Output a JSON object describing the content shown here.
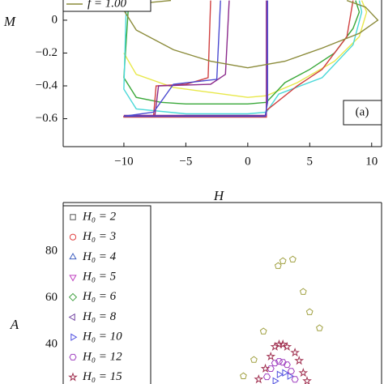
{
  "chart_data": [
    {
      "type": "line",
      "xlabel": "H",
      "ylabel": "M",
      "annotation": "(a)",
      "xlim": [
        -14.9,
        10.8
      ],
      "ylim": [
        -0.77,
        0.123
      ],
      "xticks": [
        {
          "value": -10,
          "label": "−10"
        },
        {
          "value": -5,
          "label": "−5"
        },
        0,
        5,
        10
      ],
      "yticks": [
        0,
        {
          "value": -0.2,
          "label": "−0.2"
        },
        {
          "value": -0.4,
          "label": "−0.4"
        },
        {
          "value": -0.6,
          "label": "−0.6"
        }
      ],
      "series": [
        {
          "color": "#e8e84a",
          "x": [
            -10,
            -9,
            -6,
            -3,
            0,
            1.5,
            4,
            7,
            9,
            9.6,
            9.2
          ],
          "values": [
            -0.2,
            -0.33,
            -0.41,
            -0.44,
            -0.47,
            -0.46,
            -0.38,
            -0.25,
            -0.1,
            0.05,
            0.12
          ]
        },
        {
          "color": "#3aa83a",
          "x": [
            -9.6,
            -10,
            -9,
            -7,
            -5,
            -2.5,
            0,
            1.5,
            3,
            5,
            7,
            8.5,
            9,
            8.7
          ],
          "values": [
            0.12,
            -0.35,
            -0.47,
            -0.5,
            -0.51,
            -0.51,
            -0.51,
            -0.5,
            -0.38,
            -0.3,
            -0.2,
            -0.05,
            0.05,
            0.12
          ]
        },
        {
          "color": "#4ad8d8",
          "x": [
            -9.8,
            -10,
            -9,
            -5,
            0,
            1.5,
            2.5,
            6,
            8.5,
            9.2,
            9
          ],
          "values": [
            0.12,
            -0.42,
            -0.54,
            -0.57,
            -0.57,
            -0.56,
            -0.45,
            -0.35,
            -0.15,
            0.05,
            0.12
          ]
        },
        {
          "color": "#d04040",
          "x": [
            -3,
            -3.2,
            -5,
            -7.4,
            -7.6,
            -10,
            -10,
            1.5,
            1.5,
            4,
            6,
            8,
            8.5
          ],
          "values": [
            0.12,
            -0.35,
            -0.39,
            -0.4,
            -0.58,
            -0.585,
            -0.59,
            -0.59,
            -0.55,
            -0.4,
            -0.3,
            -0.1,
            0.12
          ]
        },
        {
          "color": "#8b2a8b",
          "x": [
            -1.5,
            -1.8,
            -3,
            -7.2,
            -7.5,
            -10,
            1.5,
            1.5
          ],
          "values": [
            0.12,
            -0.33,
            -0.39,
            -0.4,
            -0.58,
            -0.58,
            -0.58,
            0.12
          ]
        },
        {
          "color": "#4a4ad0",
          "x": [
            -2.2,
            -2.5,
            -6,
            -7.6,
            -10,
            1.4,
            1.6,
            1.6
          ],
          "values": [
            0.12,
            -0.36,
            -0.39,
            -0.56,
            -0.585,
            -0.585,
            -0.5,
            0.12
          ]
        },
        {
          "name": "f = 1.00",
          "color": "#8b8b3a",
          "x": [
            -6.2,
            -9,
            -10,
            -9,
            -6,
            -3,
            0,
            3,
            6,
            9,
            10.5,
            9.5,
            8
          ],
          "values": [
            0.12,
            0.1,
            0.06,
            -0.06,
            -0.18,
            -0.25,
            -0.29,
            -0.25,
            -0.17,
            -0.08,
            0.0,
            0.08,
            0.12
          ]
        }
      ]
    },
    {
      "type": "scatter",
      "ylabel": "A",
      "xlim": [
        0,
        1
      ],
      "ylim": [
        23,
        100.9
      ],
      "yticks": [
        40,
        60,
        80
      ],
      "series": [
        {
          "name": "H₀ = 2",
          "color": "#555555",
          "marker": "square",
          "x": [],
          "values": []
        },
        {
          "name": "H₀ = 3",
          "color": "#e04040",
          "marker": "circle",
          "x": [],
          "values": []
        },
        {
          "name": "H₀ = 4",
          "color": "#4060c0",
          "marker": "triangle-up",
          "x": [],
          "values": []
        },
        {
          "name": "H₀ = 5",
          "color": "#c040c0",
          "marker": "triangle-down",
          "x": [],
          "values": []
        },
        {
          "name": "H₀ = 6",
          "color": "#40a040",
          "marker": "diamond",
          "x": [],
          "values": []
        },
        {
          "name": "H₀ = 8",
          "color": "#7040a0",
          "marker": "triangle-left",
          "x": [],
          "values": []
        },
        {
          "name": "H₀ = 10",
          "color": "#5050e0",
          "marker": "triangle-right",
          "x": [
            0.665,
            0.678,
            0.695,
            0.711
          ],
          "values": [
            24.3,
            27.1,
            27.8,
            26.4
          ]
        },
        {
          "name": "H₀ = 12",
          "color": "#a040c0",
          "marker": "hexagon",
          "x": [
            0.64,
            0.652,
            0.665,
            0.678,
            0.69,
            0.703,
            0.716,
            0.728
          ],
          "values": [
            26.1,
            29.6,
            32.0,
            32.7,
            32.3,
            31.3,
            28.5,
            25.0
          ]
        },
        {
          "name": "H₀ = 15",
          "color": "#a03050",
          "marker": "star",
          "x": [
            0.614,
            0.635,
            0.652,
            0.665,
            0.678,
            0.69,
            0.703,
            0.728,
            0.741,
            0.754,
            0.766
          ],
          "values": [
            25.0,
            29.6,
            34.8,
            39.0,
            40.0,
            40.0,
            39.0,
            36.5,
            33.0,
            27.8,
            24.3
          ]
        },
        {
          "color": "#a0a040",
          "marker": "pentagon",
          "x": [
            0.566,
            0.599,
            0.629,
            0.675,
            0.69,
            0.721,
            0.754,
            0.774,
            0.805
          ],
          "values": [
            26.4,
            33.4,
            45.6,
            73.7,
            75.8,
            76.5,
            62.6,
            53.9,
            47.0
          ]
        }
      ]
    }
  ]
}
